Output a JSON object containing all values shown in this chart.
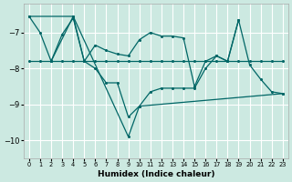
{
  "xlabel": "Humidex (Indice chaleur)",
  "bg_color": "#cce9e1",
  "grid_color": "#ffffff",
  "line_color": "#006666",
  "xlim": [
    -0.5,
    23.5
  ],
  "ylim": [
    -10.5,
    -6.2
  ],
  "yticks": [
    -10,
    -9,
    -8,
    -7
  ],
  "xticks": [
    0,
    1,
    2,
    3,
    4,
    5,
    6,
    7,
    8,
    9,
    10,
    11,
    12,
    13,
    14,
    15,
    16,
    17,
    18,
    19,
    20,
    21,
    22,
    23
  ],
  "line1": [
    [
      0,
      -7.8
    ],
    [
      1,
      -7.8
    ],
    [
      2,
      -7.8
    ],
    [
      3,
      -7.8
    ],
    [
      4,
      -7.8
    ],
    [
      5,
      -7.8
    ],
    [
      6,
      -7.8
    ],
    [
      7,
      -7.8
    ],
    [
      8,
      -7.8
    ],
    [
      9,
      -7.8
    ],
    [
      10,
      -7.8
    ],
    [
      11,
      -7.8
    ],
    [
      12,
      -7.8
    ],
    [
      13,
      -7.8
    ],
    [
      14,
      -7.8
    ],
    [
      15,
      -7.8
    ],
    [
      16,
      -7.8
    ],
    [
      17,
      -7.8
    ],
    [
      18,
      -7.8
    ],
    [
      19,
      -7.8
    ],
    [
      20,
      -7.8
    ],
    [
      21,
      -7.8
    ],
    [
      22,
      -7.8
    ],
    [
      23,
      -7.8
    ]
  ],
  "line2": [
    [
      0,
      -6.55
    ],
    [
      1,
      -7.0
    ],
    [
      2,
      -7.8
    ],
    [
      3,
      -7.05
    ],
    [
      4,
      -6.6
    ],
    [
      5,
      -7.8
    ],
    [
      6,
      -7.35
    ],
    [
      7,
      -7.5
    ],
    [
      8,
      -7.6
    ],
    [
      9,
      -7.65
    ],
    [
      10,
      -7.2
    ],
    [
      11,
      -7.0
    ],
    [
      12,
      -7.1
    ],
    [
      13,
      -7.1
    ],
    [
      14,
      -7.15
    ],
    [
      15,
      -8.5
    ],
    [
      16,
      -7.8
    ],
    [
      17,
      -7.65
    ],
    [
      18,
      -7.8
    ],
    [
      19,
      -6.65
    ],
    [
      20,
      -7.9
    ],
    [
      21,
      -8.3
    ],
    [
      22,
      -8.65
    ],
    [
      23,
      -8.7
    ]
  ],
  "line3": [
    [
      2,
      -7.8
    ],
    [
      4,
      -6.55
    ],
    [
      5,
      -7.8
    ],
    [
      6,
      -8.0
    ],
    [
      7,
      -8.4
    ],
    [
      8,
      -8.4
    ],
    [
      9,
      -9.35
    ],
    [
      10,
      -9.05
    ],
    [
      11,
      -8.65
    ],
    [
      12,
      -8.55
    ],
    [
      13,
      -8.55
    ],
    [
      14,
      -8.55
    ],
    [
      15,
      -8.55
    ],
    [
      16,
      -8.0
    ],
    [
      17,
      -7.65
    ],
    [
      18,
      -7.8
    ],
    [
      19,
      -6.65
    ]
  ],
  "line4": [
    [
      0,
      -6.55
    ],
    [
      4,
      -6.55
    ],
    [
      9,
      -9.9
    ],
    [
      10,
      -9.05
    ],
    [
      23,
      -8.7
    ]
  ]
}
